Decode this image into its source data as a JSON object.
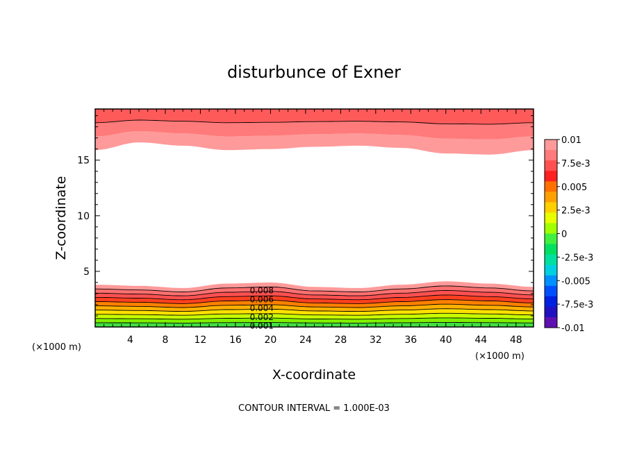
{
  "chart_data": {
    "type": "contour",
    "title": "disturbunce of Exner",
    "xlabel": "X-coordinate",
    "ylabel": "Z-coordinate",
    "x_unit_left": "(×1000 m)",
    "x_unit_right": "(×1000 m)",
    "xlim": [
      0,
      50
    ],
    "ylim": [
      0,
      19.6
    ],
    "x_ticks": [
      4,
      8,
      12,
      16,
      20,
      24,
      28,
      32,
      36,
      40,
      44,
      48
    ],
    "x_tick_labels": [
      "4",
      "8",
      "12",
      "16",
      "20",
      "24",
      "28",
      "32",
      "36",
      "40",
      "44",
      "48"
    ],
    "y_ticks": [
      5,
      10,
      15
    ],
    "y_tick_labels": [
      "5",
      "10",
      "15"
    ],
    "note": "CONTOUR INTERVAL = 1.000E-03",
    "colorbar": {
      "labels": [
        "0.01",
        "7.5e-3",
        "0.005",
        "2.5e-3",
        "0",
        "-2.5e-3",
        "-0.005",
        "-7.5e-3",
        "-0.01"
      ],
      "colors": [
        "#ff9a9a",
        "#ff7a7a",
        "#ff5050",
        "#ff2020",
        "#ff7000",
        "#ffa000",
        "#ffd000",
        "#e8ff00",
        "#a0ff00",
        "#40f040",
        "#00e060",
        "#00e0a0",
        "#00d0e0",
        "#0090ff",
        "#0050ff",
        "#0020e0",
        "#2010c0",
        "#6010b0"
      ]
    },
    "contour_labels": [
      "0.008",
      "0.006",
      "0.004",
      "0.002",
      "0.001"
    ],
    "contour_label_x": 19,
    "lower_band": {
      "top_z": [
        3.8,
        3.7,
        3.5,
        3.9,
        4.0,
        3.6,
        3.5,
        3.8,
        4.1,
        3.9,
        3.6
      ],
      "bottom_colors": [
        "#40e040",
        "#80f000",
        "#c8ff00",
        "#ffe000",
        "#ffb000",
        "#ff8000",
        "#ff4020",
        "#ff5050",
        "#ff7070",
        "#ff9a9a"
      ]
    },
    "upper_band": {
      "bottom_z": [
        15.9,
        16.6,
        16.3,
        15.9,
        16.0,
        16.2,
        16.3,
        16.1,
        15.6,
        15.5,
        15.9
      ],
      "colors": [
        "#ff9a9a",
        "#ff7a7a",
        "#ff5a5a"
      ]
    }
  }
}
